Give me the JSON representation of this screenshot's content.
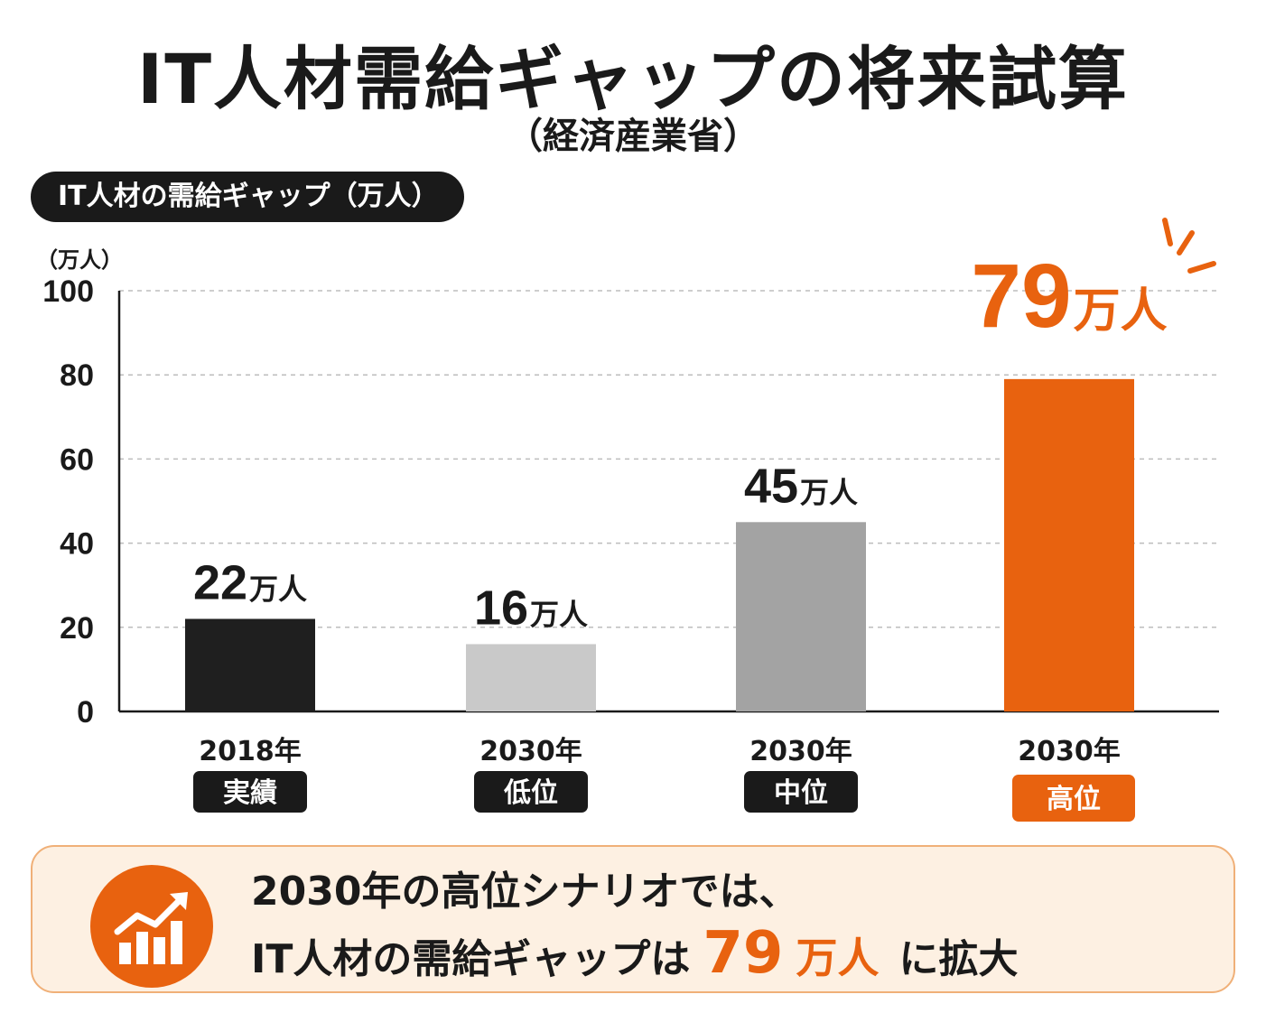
{
  "header": {
    "title": "IT人材需給ギャップの将来試算",
    "subtitle": "（経済産業省）",
    "pill_label": "IT人材の需給ギャップ（万人）"
  },
  "chart_data": {
    "type": "bar",
    "unit_label": "（万人）",
    "ylim": [
      0,
      100
    ],
    "yticks": [
      0,
      20,
      40,
      60,
      80,
      100
    ],
    "grid": true,
    "categories": [
      {
        "year": "2018年",
        "tag": "実績",
        "value": 22,
        "value_text": "22",
        "unit": "万人",
        "color": "#1f1f1f",
        "tag_color": "#1a1a1a"
      },
      {
        "year": "2030年",
        "tag": "低位",
        "value": 16,
        "value_text": "16",
        "unit": "万人",
        "color": "#c9c9c9",
        "tag_color": "#1a1a1a"
      },
      {
        "year": "2030年",
        "tag": "中位",
        "value": 45,
        "value_text": "45",
        "unit": "万人",
        "color": "#a3a3a3",
        "tag_color": "#1a1a1a"
      },
      {
        "year": "2030年",
        "tag": "高位",
        "value": 79,
        "value_text": "79",
        "unit": "万人",
        "color": "#e8620f",
        "tag_color": "#e8620f"
      }
    ],
    "highlight_color": "#e8620f"
  },
  "callout": {
    "line1": "2030年の高位シナリオでは、",
    "line2_prefix": "IT人材の需給ギャップは",
    "line2_value": "79",
    "line2_unit": "万人",
    "line2_suffix": "に拡大",
    "icon": "growth-chart-icon"
  }
}
